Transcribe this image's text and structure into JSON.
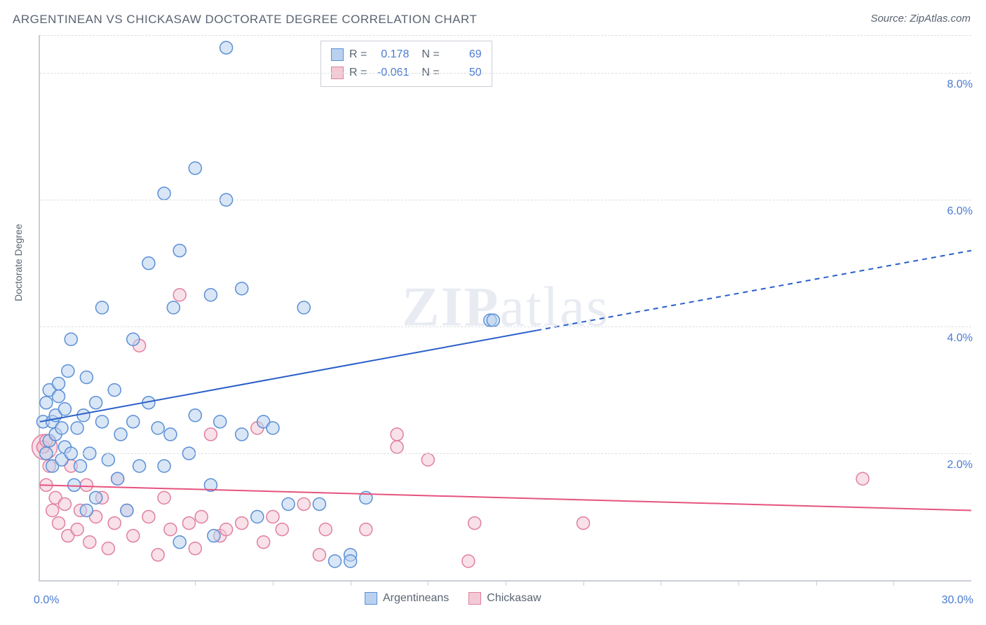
{
  "title": "ARGENTINEAN VS CHICKASAW DOCTORATE DEGREE CORRELATION CHART",
  "source": "Source: ZipAtlas.com",
  "y_axis_label": "Doctorate Degree",
  "watermark_a": "ZIP",
  "watermark_b": "atlas",
  "chart": {
    "type": "scatter",
    "xlim": [
      0,
      30
    ],
    "ylim": [
      0,
      8.6
    ],
    "x_tick_step": 2.5,
    "y_ticks": [
      2.0,
      4.0,
      6.0,
      8.0
    ],
    "y_tick_labels": [
      "2.0%",
      "4.0%",
      "6.0%",
      "8.0%"
    ],
    "x_min_label": "0.0%",
    "x_max_label": "30.0%",
    "grid_color": "#dcdfe4",
    "axis_color": "#c9ced6",
    "axis_value_color": "#4a7bd0",
    "background_color": "#ffffff",
    "marker_radius": 9,
    "marker_radius_large": 18,
    "series": [
      {
        "name": "Argentineans",
        "fill": "#b9d1ef",
        "stroke": "#5a8fd6",
        "fill_opacity": 0.55,
        "trend": {
          "color": "#2a5fc9",
          "width": 2,
          "y_at_x0": 2.5,
          "y_at_xmax": 5.2,
          "solid_until_x": 16
        },
        "R": "0.178",
        "N": "69",
        "points": [
          [
            0.1,
            2.5
          ],
          [
            0.2,
            2.0
          ],
          [
            0.2,
            2.8
          ],
          [
            0.3,
            2.2
          ],
          [
            0.3,
            3.0
          ],
          [
            0.4,
            1.8
          ],
          [
            0.4,
            2.5
          ],
          [
            0.5,
            2.3
          ],
          [
            0.5,
            2.6
          ],
          [
            0.6,
            2.9
          ],
          [
            0.6,
            3.1
          ],
          [
            0.7,
            1.9
          ],
          [
            0.7,
            2.4
          ],
          [
            0.8,
            2.1
          ],
          [
            0.8,
            2.7
          ],
          [
            0.9,
            3.3
          ],
          [
            1.0,
            2.0
          ],
          [
            1.0,
            3.8
          ],
          [
            1.1,
            1.5
          ],
          [
            1.2,
            2.4
          ],
          [
            1.3,
            1.8
          ],
          [
            1.4,
            2.6
          ],
          [
            1.5,
            3.2
          ],
          [
            1.5,
            1.1
          ],
          [
            1.6,
            2.0
          ],
          [
            1.8,
            2.8
          ],
          [
            1.8,
            1.3
          ],
          [
            2.0,
            2.5
          ],
          [
            2.0,
            4.3
          ],
          [
            2.2,
            1.9
          ],
          [
            2.4,
            3.0
          ],
          [
            2.5,
            1.6
          ],
          [
            2.6,
            2.3
          ],
          [
            2.8,
            1.1
          ],
          [
            3.0,
            2.5
          ],
          [
            3.0,
            3.8
          ],
          [
            3.2,
            1.8
          ],
          [
            3.5,
            2.8
          ],
          [
            3.5,
            5.0
          ],
          [
            3.8,
            2.4
          ],
          [
            4.0,
            6.1
          ],
          [
            4.0,
            1.8
          ],
          [
            4.2,
            2.3
          ],
          [
            4.3,
            4.3
          ],
          [
            4.5,
            5.2
          ],
          [
            4.5,
            0.6
          ],
          [
            4.8,
            2.0
          ],
          [
            5.0,
            6.5
          ],
          [
            5.0,
            2.6
          ],
          [
            5.5,
            1.5
          ],
          [
            5.5,
            4.5
          ],
          [
            5.6,
            0.7
          ],
          [
            5.8,
            2.5
          ],
          [
            6.0,
            6.0
          ],
          [
            6.0,
            8.4
          ],
          [
            6.5,
            2.3
          ],
          [
            6.5,
            4.6
          ],
          [
            7.0,
            1.0
          ],
          [
            7.2,
            2.5
          ],
          [
            7.5,
            2.4
          ],
          [
            8.0,
            1.2
          ],
          [
            8.5,
            4.3
          ],
          [
            9.0,
            1.2
          ],
          [
            9.5,
            0.3
          ],
          [
            10.0,
            0.4
          ],
          [
            10.5,
            1.3
          ],
          [
            14.5,
            4.1
          ],
          [
            14.6,
            4.1
          ],
          [
            10.0,
            0.3
          ]
        ]
      },
      {
        "name": "Chickasaw",
        "fill": "#f3c9d6",
        "stroke": "#e07fa0",
        "fill_opacity": 0.55,
        "trend": {
          "color": "#e5537e",
          "width": 2,
          "y_at_x0": 1.5,
          "y_at_xmax": 1.1,
          "solid_until_x": 30
        },
        "R": "-0.061",
        "N": "50",
        "points": [
          [
            0.1,
            2.1
          ],
          [
            0.2,
            1.5
          ],
          [
            0.3,
            1.8
          ],
          [
            0.4,
            1.1
          ],
          [
            0.5,
            1.3
          ],
          [
            0.6,
            0.9
          ],
          [
            0.8,
            1.2
          ],
          [
            0.9,
            0.7
          ],
          [
            1.0,
            1.8
          ],
          [
            1.2,
            0.8
          ],
          [
            1.3,
            1.1
          ],
          [
            1.5,
            1.5
          ],
          [
            1.6,
            0.6
          ],
          [
            1.8,
            1.0
          ],
          [
            2.0,
            1.3
          ],
          [
            2.2,
            0.5
          ],
          [
            2.4,
            0.9
          ],
          [
            2.5,
            1.6
          ],
          [
            2.8,
            1.1
          ],
          [
            3.0,
            0.7
          ],
          [
            3.2,
            3.7
          ],
          [
            3.5,
            1.0
          ],
          [
            3.8,
            0.4
          ],
          [
            4.0,
            1.3
          ],
          [
            4.2,
            0.8
          ],
          [
            4.5,
            4.5
          ],
          [
            4.8,
            0.9
          ],
          [
            5.0,
            0.5
          ],
          [
            5.2,
            1.0
          ],
          [
            5.5,
            2.3
          ],
          [
            5.8,
            0.7
          ],
          [
            6.0,
            0.8
          ],
          [
            6.5,
            0.9
          ],
          [
            7.0,
            2.4
          ],
          [
            7.2,
            0.6
          ],
          [
            7.5,
            1.0
          ],
          [
            7.8,
            0.8
          ],
          [
            8.5,
            1.2
          ],
          [
            9.0,
            0.4
          ],
          [
            9.2,
            0.8
          ],
          [
            10.5,
            0.8
          ],
          [
            11.5,
            2.1
          ],
          [
            11.5,
            2.3
          ],
          [
            12.5,
            1.9
          ],
          [
            13.8,
            0.3
          ],
          [
            14.0,
            0.9
          ],
          [
            17.5,
            0.9
          ],
          [
            26.5,
            1.6
          ],
          [
            0.1,
            2.1
          ],
          [
            0.2,
            2.2
          ]
        ],
        "large_points": [
          [
            0.15,
            2.1
          ]
        ]
      }
    ]
  },
  "legend_box": {
    "R_label": "R =",
    "N_label": "N ="
  },
  "bottom_legend": {
    "items": [
      "Argentineans",
      "Chickasaw"
    ]
  }
}
